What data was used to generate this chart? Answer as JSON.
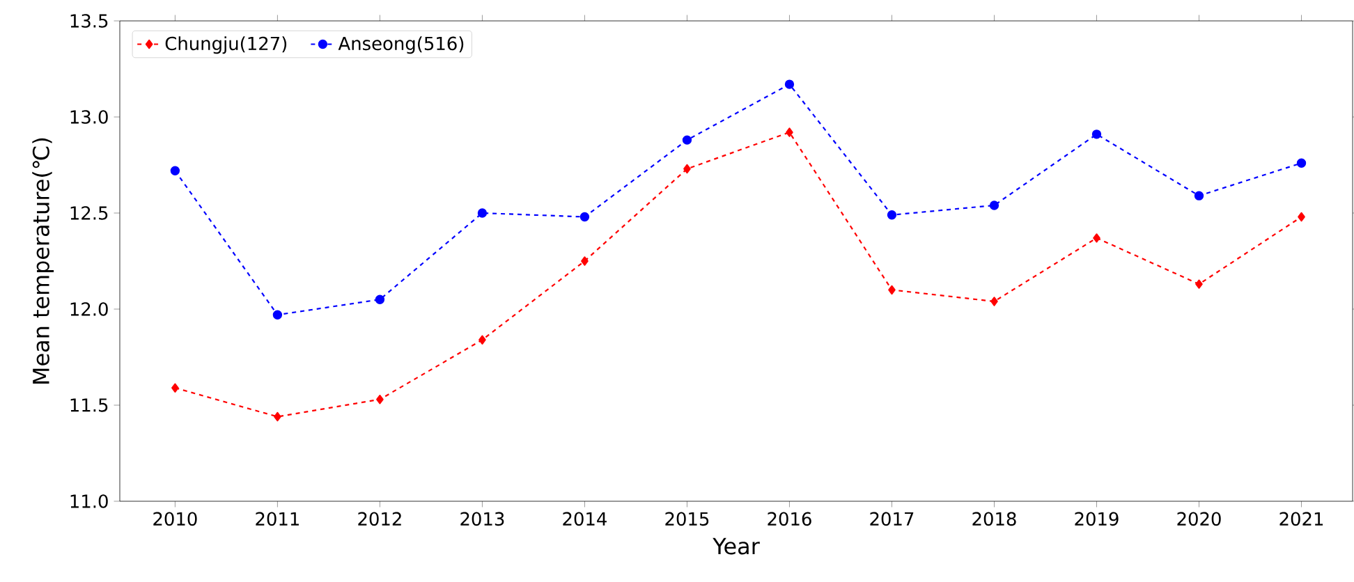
{
  "chart_data": {
    "type": "line",
    "xlabel": "Year",
    "ylabel": "Mean temperature(℃)",
    "x": [
      2010,
      2011,
      2012,
      2013,
      2014,
      2015,
      2016,
      2017,
      2018,
      2019,
      2020,
      2021
    ],
    "series": [
      {
        "name": "Chungju(127)",
        "color": "#ff0000",
        "marker": "diamond",
        "values": [
          11.59,
          11.44,
          11.53,
          11.84,
          12.25,
          12.73,
          12.92,
          12.1,
          12.04,
          12.37,
          12.13,
          12.48
        ]
      },
      {
        "name": "Anseong(516)",
        "color": "#0000ff",
        "marker": "circle",
        "values": [
          12.72,
          11.97,
          12.05,
          12.5,
          12.48,
          12.88,
          13.17,
          12.49,
          12.54,
          12.91,
          12.59,
          12.76
        ]
      }
    ],
    "xlim": [
      2009.46,
      2021.5
    ],
    "ylim": [
      11.0,
      13.5
    ],
    "xticks": [
      2010,
      2011,
      2012,
      2013,
      2014,
      2015,
      2016,
      2017,
      2018,
      2019,
      2020,
      2021
    ],
    "yticks": [
      {
        "value": 11.0,
        "label": "11.0"
      },
      {
        "value": 11.5,
        "label": "11.5"
      },
      {
        "value": 12.0,
        "label": "12.0"
      },
      {
        "value": 12.5,
        "label": "12.5"
      },
      {
        "value": 13.0,
        "label": "13.0"
      },
      {
        "value": 13.5,
        "label": "13.5"
      }
    ],
    "legend": "top left",
    "line_style": "dashed",
    "grid": false
  }
}
